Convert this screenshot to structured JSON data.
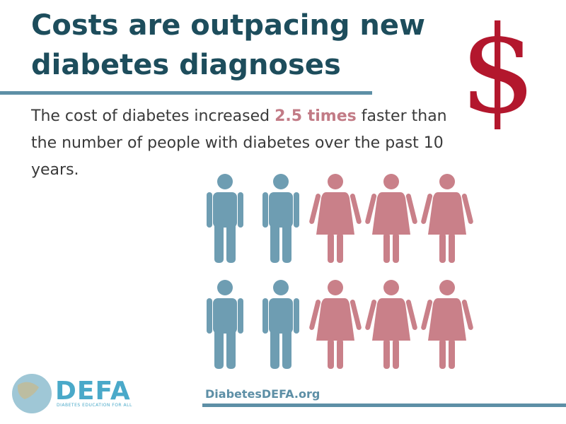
{
  "header": {
    "title": "Costs are outpacing new diabetes diagnoses"
  },
  "body": {
    "before": "The cost of diabetes increased ",
    "highlight": "2.5 times",
    "after": " faster than the number of people with diabetes over the past 10 years."
  },
  "symbol": "$",
  "footer": {
    "logo": "DEFA",
    "tagline": "DIABETES EDUCATION FOR ALL",
    "website": "DiabetesDEFA.org"
  }
}
